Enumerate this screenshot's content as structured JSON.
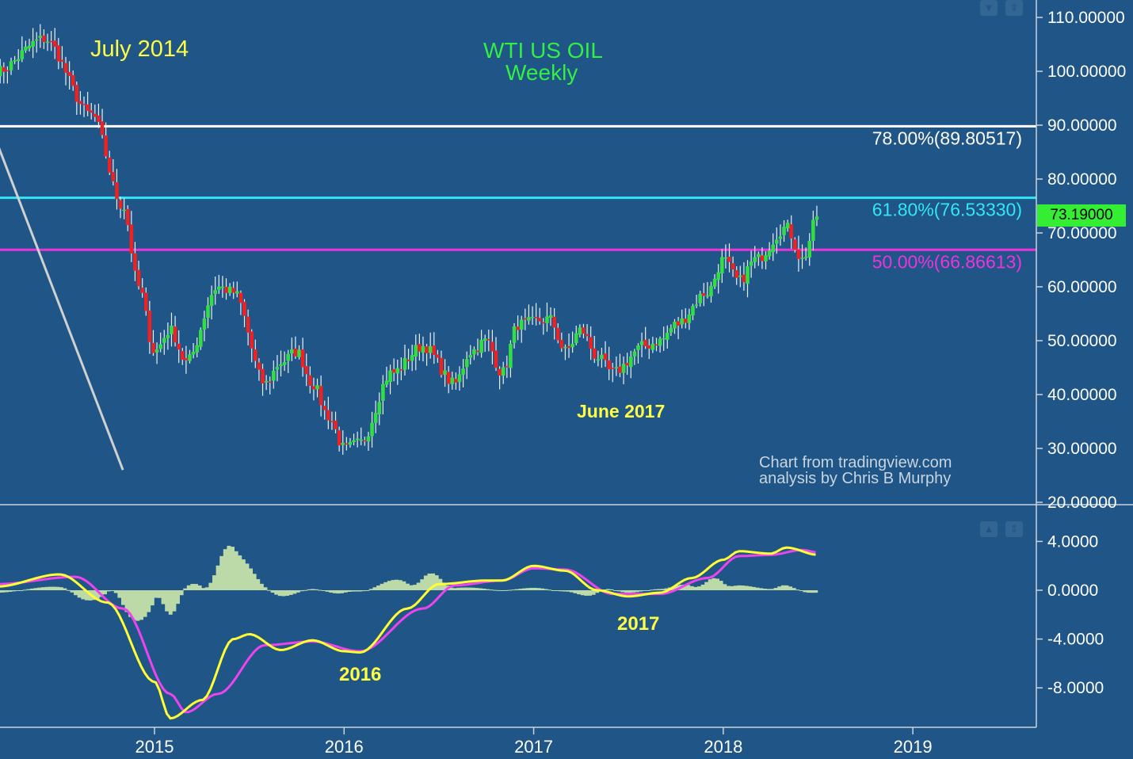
{
  "colors": {
    "background": "#1f5587",
    "up_candle": "#33dd44",
    "down_candle": "#ee2222",
    "wick": "#e8f0f8",
    "fib_78": "#ffffff",
    "fib_618": "#33e6f5",
    "fib_50": "#ee33dd",
    "macd_line": "#ffff33",
    "signal_line": "#ee44ee",
    "histogram": "#bcd9a8",
    "annotation_yellow": "#ffff44",
    "title_green": "#33ee44",
    "axis_text": "#ffffff",
    "last_price_bg": "#33ee33"
  },
  "header": {
    "title_line1": "WTI US OIL",
    "title_line2": "Weekly"
  },
  "annotations": {
    "july_2014": "July 2014",
    "june_2017": "June 2017",
    "macd_2016": "2016",
    "macd_2017": "2017",
    "credit_line1": "Chart from tradingview.com",
    "credit_line2": "analysis by Chris B Murphy"
  },
  "last_price": "73.19000",
  "chart_data": [
    {
      "type": "candlestick",
      "x_tick_labels": [
        "2015",
        "2016",
        "2017",
        "2018",
        "2019"
      ],
      "y_tick_labels": [
        "110.00000",
        "100.00000",
        "90.00000",
        "80.00000",
        "70.00000",
        "60.00000",
        "50.00000",
        "40.00000",
        "30.00000",
        "20.00000"
      ],
      "ylim": [
        20,
        110
      ],
      "fib_levels": [
        {
          "label": "78.00%(89.80517)",
          "value": 89.80517
        },
        {
          "label": "61.80%(76.53330)",
          "value": 76.5333
        },
        {
          "label": "50.00%(66.86613)",
          "value": 66.86613
        }
      ],
      "trendline": {
        "from": {
          "date": "2014-03",
          "price": 90
        },
        "to": {
          "date": "2014-11",
          "price": 26
        }
      },
      "anchors": [
        [
          "2014-03",
          100
        ],
        [
          "2014-06",
          106
        ],
        [
          "2014-09",
          92
        ],
        [
          "2014-11",
          75
        ],
        [
          "2014-12",
          60
        ],
        [
          "2015-01",
          48
        ],
        [
          "2015-02",
          52
        ],
        [
          "2015-03",
          46
        ],
        [
          "2015-05",
          60
        ],
        [
          "2015-06",
          59
        ],
        [
          "2015-08",
          42
        ],
        [
          "2015-09",
          46
        ],
        [
          "2015-10",
          48
        ],
        [
          "2015-11",
          42
        ],
        [
          "2015-12",
          36
        ],
        [
          "2016-01",
          30
        ],
        [
          "2016-02",
          31
        ],
        [
          "2016-04",
          44
        ],
        [
          "2016-06",
          49
        ],
        [
          "2016-08",
          42
        ],
        [
          "2016-09",
          48
        ],
        [
          "2016-10",
          50
        ],
        [
          "2016-11",
          44
        ],
        [
          "2016-12",
          53
        ],
        [
          "2017-02",
          54
        ],
        [
          "2017-03",
          48
        ],
        [
          "2017-04",
          52
        ],
        [
          "2017-05",
          47
        ],
        [
          "2017-06",
          44
        ],
        [
          "2017-08",
          49
        ],
        [
          "2017-09",
          50
        ],
        [
          "2017-10",
          53
        ],
        [
          "2017-12",
          59
        ],
        [
          "2018-01",
          65
        ],
        [
          "2018-02",
          61
        ],
        [
          "2018-03",
          65
        ],
        [
          "2018-05",
          71
        ],
        [
          "2018-06",
          65
        ],
        [
          "2018-07",
          73.19
        ]
      ]
    },
    {
      "type": "macd",
      "y_tick_labels": [
        "4.0000",
        "0.0000",
        "-4.0000",
        "-8.0000"
      ],
      "ylim": [
        -10.5,
        6
      ],
      "macd_anchors": [
        [
          "2014-03",
          0.3
        ],
        [
          "2014-07",
          1.3
        ],
        [
          "2014-10",
          -1
        ],
        [
          "2015-01",
          -7.5
        ],
        [
          "2015-02",
          -10.5
        ],
        [
          "2015-04",
          -9
        ],
        [
          "2015-06",
          -4
        ],
        [
          "2015-07",
          -3.6
        ],
        [
          "2015-09",
          -4.9
        ],
        [
          "2015-11",
          -4.1
        ],
        [
          "2016-01",
          -5
        ],
        [
          "2016-02",
          -5.1
        ],
        [
          "2016-05",
          -1.5
        ],
        [
          "2016-07",
          0.5
        ],
        [
          "2016-10",
          0.8
        ],
        [
          "2016-11",
          0.8
        ],
        [
          "2017-01",
          2
        ],
        [
          "2017-03",
          1.6
        ],
        [
          "2017-05",
          0
        ],
        [
          "2017-07",
          -0.5
        ],
        [
          "2017-09",
          -0.2
        ],
        [
          "2017-11",
          1
        ],
        [
          "2018-01",
          2.5
        ],
        [
          "2018-02",
          3.2
        ],
        [
          "2018-04",
          3.0
        ],
        [
          "2018-05",
          3.5
        ],
        [
          "2018-07",
          2.9
        ]
      ],
      "signal_anchors": [
        [
          "2014-03",
          0.5
        ],
        [
          "2014-08",
          1.1
        ],
        [
          "2014-11",
          -1.5
        ],
        [
          "2015-02",
          -8.5
        ],
        [
          "2015-03",
          -10
        ],
        [
          "2015-05",
          -8.5
        ],
        [
          "2015-08",
          -4.5
        ],
        [
          "2015-11",
          -4.2
        ],
        [
          "2016-02",
          -5
        ],
        [
          "2016-06",
          -1.5
        ],
        [
          "2016-08",
          0.4
        ],
        [
          "2016-11",
          0.8
        ],
        [
          "2017-01",
          1.8
        ],
        [
          "2017-03",
          1.7
        ],
        [
          "2017-06",
          -0.3
        ],
        [
          "2017-09",
          -0.3
        ],
        [
          "2017-12",
          1
        ],
        [
          "2018-02",
          2.8
        ],
        [
          "2018-04",
          2.9
        ],
        [
          "2018-06",
          3.3
        ],
        [
          "2018-07",
          3.1
        ]
      ]
    }
  ]
}
